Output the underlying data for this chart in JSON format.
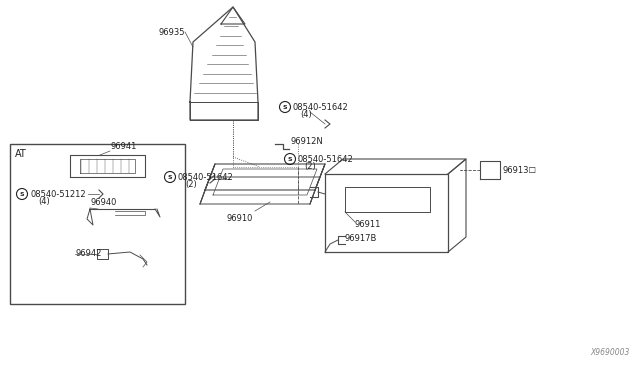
{
  "bg_color": "#ffffff",
  "line_color": "#4a4a4a",
  "text_color": "#222222",
  "fig_width": 6.4,
  "fig_height": 3.72,
  "dpi": 100,
  "diagram_code": "X9690003",
  "fs": 6.0,
  "boot_label": "96935",
  "clip_label": "96912N",
  "screw_top_label": "08540-51642",
  "screw_top_qty": "(2)",
  "tray_label": "96910",
  "screw_left_label": "08540-51642",
  "screw_left_qty": "(2)",
  "box_label": "96911",
  "clip2_label": "96917B",
  "screw_bot_label": "08540-51642",
  "screw_bot_qty": "(4)",
  "small_part_label": "96913☐",
  "at_label": "AT",
  "inset_label1": "96941",
  "inset_screw_label": "08540-51212",
  "inset_screw_qty": "(4)",
  "inset_label2": "96940",
  "inset_label3": "96942"
}
